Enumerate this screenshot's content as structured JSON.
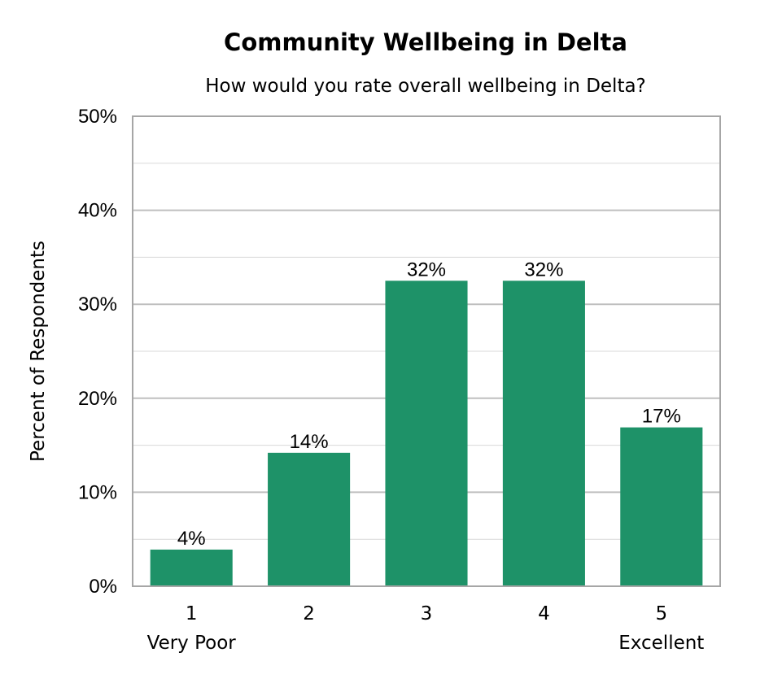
{
  "chart_data": {
    "type": "bar",
    "title": "Community Wellbeing in Delta",
    "subtitle": "How would you rate overall wellbeing in Delta?",
    "ylabel": "Percent of Respondents",
    "xlabel": "",
    "categories": [
      "1",
      "2",
      "3",
      "4",
      "5"
    ],
    "category_sublabels": [
      "Very Poor",
      "",
      "",
      "",
      "Excellent"
    ],
    "values": [
      3.9,
      14.2,
      32.5,
      32.5,
      16.9
    ],
    "data_labels": [
      "4%",
      "14%",
      "32%",
      "32%",
      "17%"
    ],
    "ylim": [
      0,
      50
    ],
    "yticks": [
      0,
      10,
      20,
      30,
      40,
      50
    ],
    "ytick_labels": [
      "0%",
      "10%",
      "20%",
      "30%",
      "40%",
      "50%"
    ],
    "grid": true,
    "legend": "none",
    "colors": {
      "bar": "#1e9268",
      "gridline": "#bfbfbf",
      "minor_gridline": "#d9d9d9",
      "frame": "#a6a6a6"
    }
  }
}
